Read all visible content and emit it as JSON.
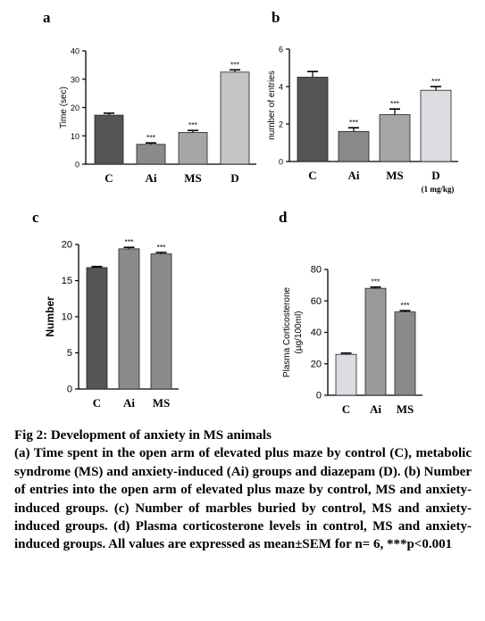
{
  "chart_data": [
    {
      "id": "a",
      "type": "bar",
      "panel_label": "a",
      "ylabel": "Time (sec)",
      "categories": [
        "C",
        "Ai",
        "MS",
        "D"
      ],
      "values": [
        17.3,
        7.0,
        11.2,
        32.5
      ],
      "errors": [
        0.7,
        0.5,
        0.7,
        0.8
      ],
      "significance": [
        "",
        "***",
        "***",
        "***"
      ],
      "ylim": [
        0,
        40
      ],
      "yticks": [
        "0",
        "10",
        "20",
        "30",
        "40"
      ],
      "colors": [
        "#555555",
        "#8a8a8a",
        "#a6a6a6",
        "#c4c4c4"
      ],
      "subnote": ""
    },
    {
      "id": "b",
      "type": "bar",
      "panel_label": "b",
      "ylabel": "number of entries",
      "categories": [
        "C",
        "Ai",
        "MS",
        "D"
      ],
      "values": [
        4.5,
        1.6,
        2.5,
        3.8
      ],
      "errors": [
        0.3,
        0.2,
        0.3,
        0.2
      ],
      "significance": [
        "",
        "***",
        "***",
        "***"
      ],
      "ylim": [
        0,
        6
      ],
      "yticks": [
        "0",
        "2",
        "4",
        "6"
      ],
      "colors": [
        "#555555",
        "#8a8a8a",
        "#a6a6a6",
        "#dcdce2"
      ],
      "subnote": "(1 mg/kg)"
    },
    {
      "id": "c",
      "type": "bar",
      "panel_label": "c",
      "ylabel": "Number",
      "categories": [
        "C",
        "Ai",
        "MS"
      ],
      "values": [
        16.8,
        19.4,
        18.7
      ],
      "errors": [
        0.15,
        0.2,
        0.2
      ],
      "significance": [
        "",
        "***",
        "***"
      ],
      "ylim": [
        0,
        20
      ],
      "yticks": [
        "0",
        "5",
        "10",
        "15",
        "20"
      ],
      "colors": [
        "#555555",
        "#8a8a8a",
        "#8a8a8a"
      ],
      "subnote": ""
    },
    {
      "id": "d",
      "type": "bar",
      "panel_label": "d",
      "ylabel": "Plasma Corticosterone (µg/100ml)",
      "ylabel_lines": [
        "Plasma Corticosterone",
        "(µg/100ml)"
      ],
      "categories": [
        "C",
        "Ai",
        "MS"
      ],
      "values": [
        26,
        68,
        53
      ],
      "errors": [
        0.8,
        0.8,
        0.8
      ],
      "significance": [
        "",
        "***",
        "***"
      ],
      "ylim": [
        0,
        80
      ],
      "yticks": [
        "0",
        "20",
        "40",
        "60",
        "80"
      ],
      "colors": [
        "#dcdce2",
        "#9a9a9a",
        "#8a8a8a"
      ],
      "subnote": ""
    }
  ],
  "caption": {
    "title": "Fig 2: Development of anxiety in MS animals",
    "body": "(a) Time spent in the open arm of elevated plus maze by control (C), metabolic syndrome (MS) and anxiety-induced (Ai) groups and diazepam (D). (b) Number of entries into the open arm of elevated plus maze by control, MS and anxiety-induced groups. (c) Number of marbles buried by control, MS and anxiety-induced groups. (d) Plasma corticosterone levels in control, MS and anxiety-induced groups. All values are expressed as mean±SEM for n= 6, ***p<0.001"
  }
}
